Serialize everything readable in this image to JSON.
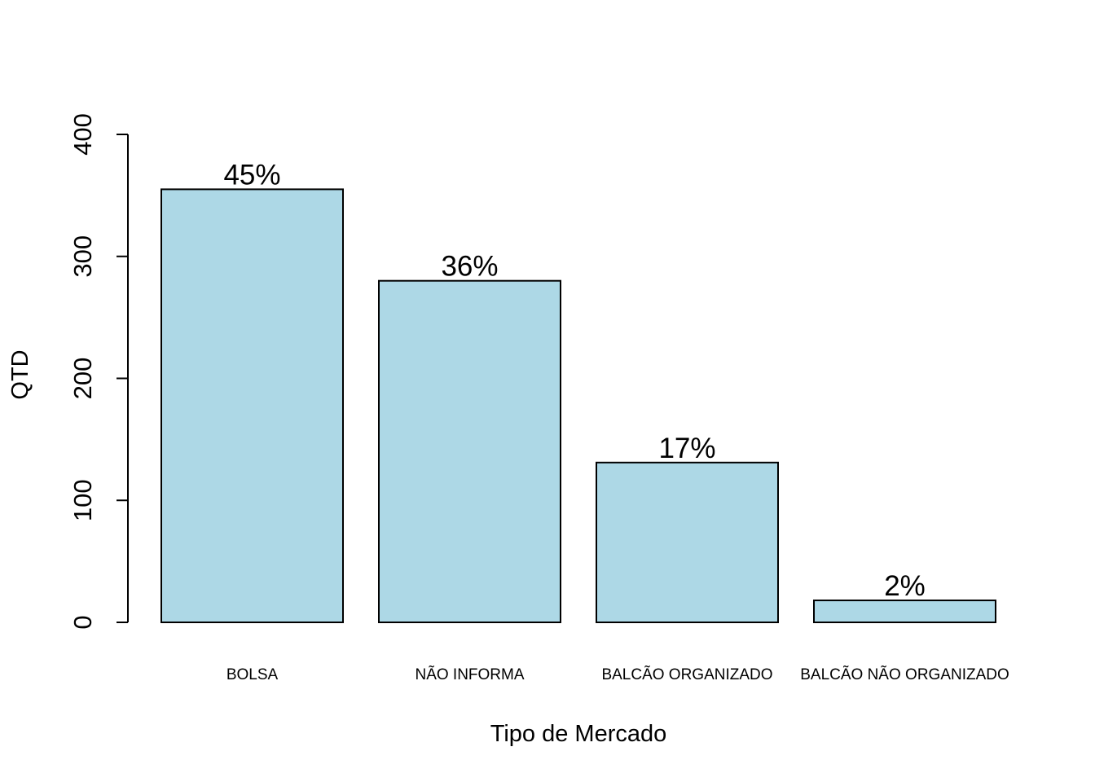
{
  "chart_data": {
    "type": "bar",
    "categories": [
      "BOLSA",
      "NÃO INFORMA",
      "BALCÃO ORGANIZADO",
      "BALCÃO NÃO ORGANIZADO"
    ],
    "values": [
      355,
      280,
      131,
      18
    ],
    "data_labels": [
      "45%",
      "36%",
      "17%",
      "2%"
    ],
    "title": "",
    "xlabel": "Tipo de Mercado",
    "ylabel": "QTD",
    "ylim": [
      0,
      400
    ],
    "yticks": [
      "0",
      "100",
      "200",
      "300",
      "400"
    ],
    "grid": false,
    "legend": "none",
    "bar_color": "#add8e6",
    "bar_border_color": "#000000"
  }
}
